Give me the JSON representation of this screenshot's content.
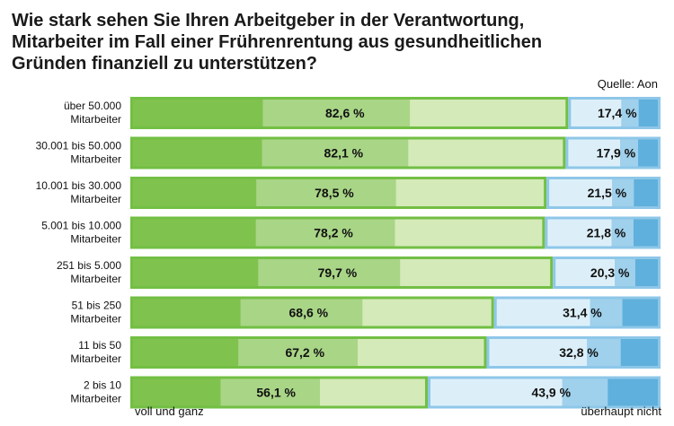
{
  "title_lines": [
    "Wie stark sehen Sie Ihren Arbeitgeber in der Verantwortung,",
    "Mitarbeiter im Fall einer Frührenrentung aus gesundheitlichen",
    "Gründen finanziell zu unterstützen?"
  ],
  "source": "Quelle: Aon",
  "legend": {
    "left": "voll und ganz",
    "right": "überhaupt nicht"
  },
  "colors": {
    "green_frame": "#72bf44",
    "green_dark": "#80c24e",
    "green_mid": "#a9d587",
    "green_light": "#d4eab9",
    "blue_frame": "#8ec7e8",
    "blue_dark": "#5fb0dc",
    "blue_mid": "#9fd0ec",
    "blue_light": "#dceff9"
  },
  "chart_data": {
    "type": "bar",
    "stacked": true,
    "orientation": "horizontal",
    "categories": [
      [
        "über 50.000",
        "Mitarbeiter"
      ],
      [
        "30.001 bis 50.000",
        "Mitarbeiter"
      ],
      [
        "10.001 bis 30.000",
        "Mitarbeiter"
      ],
      [
        "5.001 bis 10.000",
        "Mitarbeiter"
      ],
      [
        "251 bis 5.000",
        "Mitarbeiter"
      ],
      [
        "51 bis 250",
        "Mitarbeiter"
      ],
      [
        "11 bis 50",
        "Mitarbeiter"
      ],
      [
        "2 bis 10",
        "Mitarbeiter"
      ]
    ],
    "series": [
      {
        "values": [
          82.6,
          82.1,
          78.5,
          78.2,
          79.7,
          68.6,
          67.2,
          56.1
        ],
        "labels": [
          "82,6 %",
          "82,1 %",
          "78,5 %",
          "78,2 %",
          "79,7 %",
          "68,6 %",
          "67,2 %",
          "56,1 %"
        ]
      },
      {
        "values": [
          17.4,
          17.9,
          21.5,
          21.8,
          20.3,
          31.4,
          32.8,
          43.9
        ],
        "labels": [
          "17,4 %",
          "17,9 %",
          "21,5 %",
          "21,8 %",
          "20,3 %",
          "31,4 %",
          "32,8 %",
          "43,9 %"
        ]
      }
    ],
    "xlim": [
      0,
      100
    ],
    "grid": false
  }
}
